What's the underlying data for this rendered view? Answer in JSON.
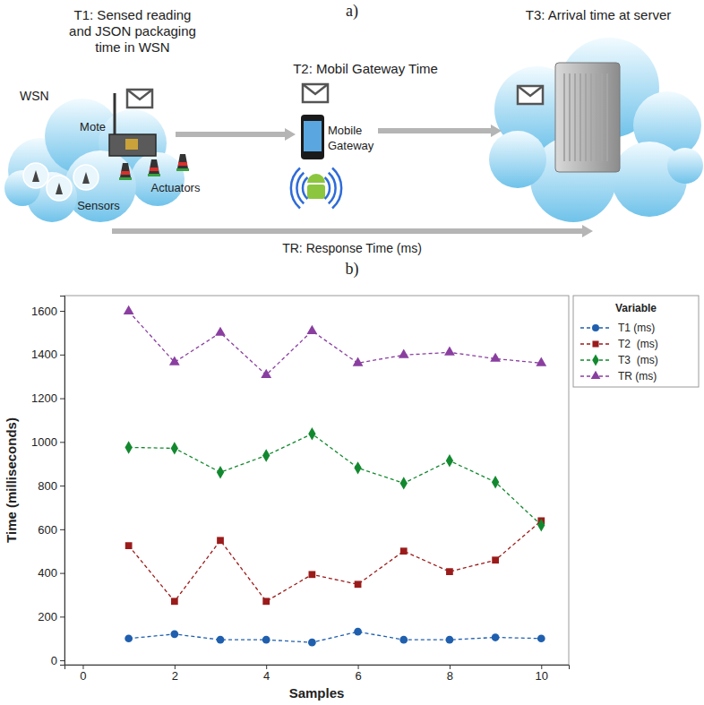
{
  "diagram": {
    "label": "a)",
    "t1_lines": [
      "T1: Sensed reading",
      "and JSON packaging",
      "time in WSN"
    ],
    "t2": "T2: Mobil Gateway Time",
    "t3": "T3: Arrival time at server",
    "wsn": "WSN",
    "mote": "Mote",
    "gateway_lines": [
      "Mobile",
      "Gateway"
    ],
    "sensors": "Sensors",
    "actuators": "Actuators",
    "tr": "TR: Response Time (ms)"
  },
  "chart_data": {
    "type": "line",
    "title": "b)",
    "x_label": "Samples",
    "y_label": "Time (milliseconds)",
    "x": [
      1,
      2,
      3,
      4,
      5,
      6,
      7,
      8,
      9,
      10
    ],
    "series": [
      {
        "name": "T1 (ms)",
        "color": "#1f5fae",
        "marker": "circle",
        "line_style": "dashed",
        "values": [
          100,
          120,
          94,
          94,
          82,
          131,
          94,
          94,
          105,
          100
        ]
      },
      {
        "name": "T2  (ms)",
        "color": "#9b1b1b",
        "marker": "square",
        "line_style": "dashed",
        "values": [
          525,
          270,
          549,
          270,
          393,
          348,
          500,
          406,
          459,
          639
        ]
      },
      {
        "name": "T3  (ms)",
        "color": "#13892f",
        "marker": "diamond",
        "line_style": "dashed",
        "values": [
          975,
          971,
          861,
          938,
          1037,
          881,
          811,
          914,
          816,
          619
        ]
      },
      {
        "name": "TR (ms)",
        "color": "#8a3fa0",
        "marker": "triangle",
        "line_style": "dashed",
        "values": [
          1598,
          1365,
          1500,
          1307,
          1508,
          1361,
          1398,
          1410,
          1381,
          1361
        ]
      }
    ],
    "xlim": [
      -0.4,
      10.6
    ],
    "xticks": [
      0,
      2,
      4,
      6,
      8,
      10
    ],
    "ylim": [
      -20,
      1670
    ],
    "yticks": [
      0,
      200,
      400,
      600,
      800,
      1000,
      1200,
      1400,
      1600
    ],
    "grid": false,
    "legend": "right",
    "legend_title": "Variable"
  }
}
